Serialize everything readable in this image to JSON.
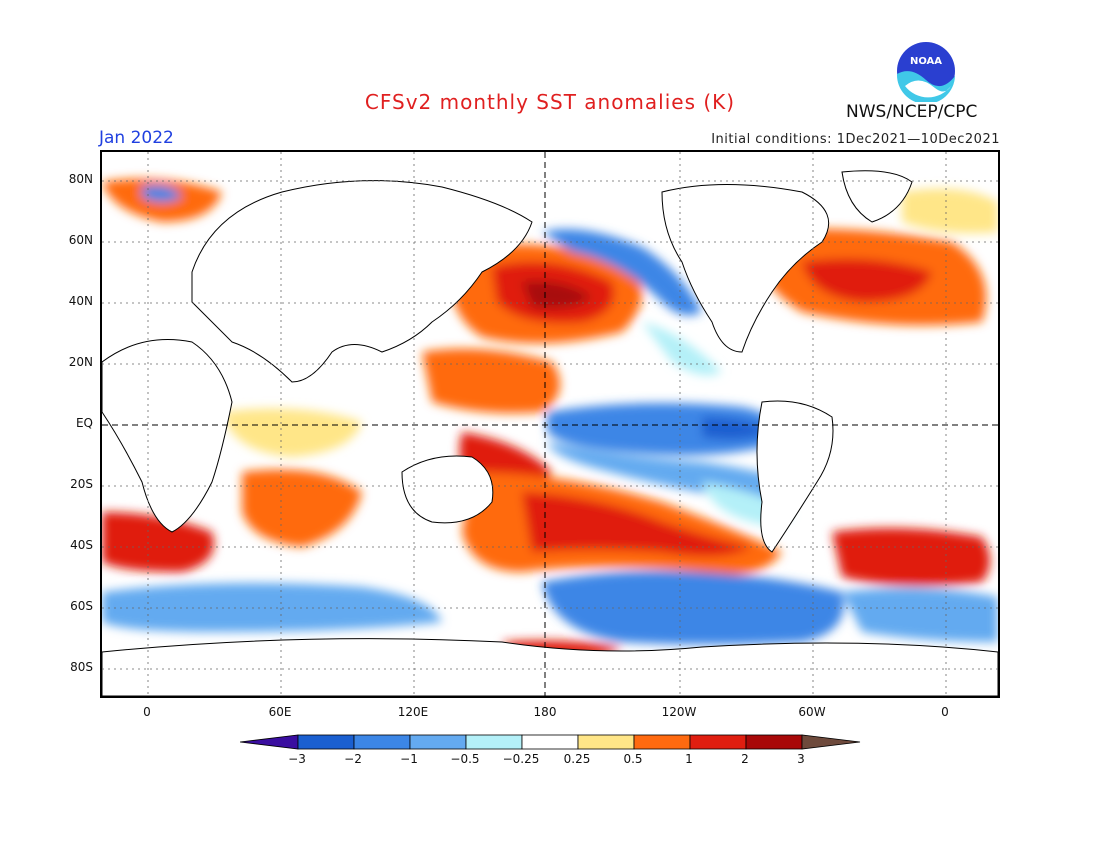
{
  "title": "CFSv2 monthly SST anomalies (K)",
  "forecast_month": "Jan 2022",
  "initial_conditions": "Initial conditions: 1Dec2021—10Dec2021",
  "agency": "NWS/NCEP/CPC",
  "logo": {
    "text": "NOAA",
    "icon": "noaa-logo"
  },
  "axes": {
    "y_ticks": [
      "80N",
      "60N",
      "40N",
      "20N",
      "EQ",
      "20S",
      "40S",
      "60S",
      "80S"
    ],
    "x_ticks": [
      "0",
      "60E",
      "120E",
      "180",
      "120W",
      "60W",
      "0"
    ]
  },
  "colorbar": {
    "labels": [
      "−3",
      "−2",
      "−1",
      "−0.5",
      "−0.25",
      "0.25",
      "0.5",
      "1",
      "2",
      "3"
    ],
    "colors": [
      "#3a0ea0",
      "#1a5fd0",
      "#3c86e6",
      "#64aaf0",
      "#b4f0f8",
      "#ffffff",
      "#ffe688",
      "#ff6a10",
      "#e01e10",
      "#a80808",
      "#6e4a3c"
    ]
  },
  "map": {
    "projection": "equirectangular",
    "center_longitude": "180"
  }
}
